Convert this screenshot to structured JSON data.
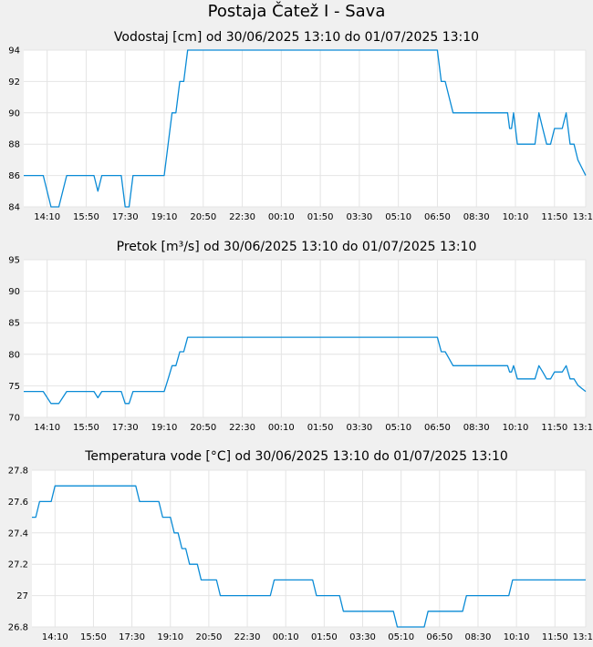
{
  "page": {
    "title": "Postaja Čatež I - Sava"
  },
  "colors": {
    "line": "#0a8bd6",
    "grid": "#e4e4e4",
    "plot_bg": "#ffffff",
    "page_bg": "#f0f0f0"
  },
  "x_ticks": [
    "14:10",
    "15:50",
    "17:30",
    "19:10",
    "20:50",
    "22:30",
    "00:10",
    "01:50",
    "03:30",
    "05:10",
    "06:50",
    "08:30",
    "10:10",
    "11:50",
    "13:10"
  ],
  "chart_data": [
    {
      "type": "line",
      "title": "Vodostaj [cm] od 30/06/2025 13:10 do 01/07/2025 13:10",
      "ylim": [
        84,
        94
      ],
      "yticks": [
        84,
        86,
        88,
        90,
        92,
        94
      ],
      "ytick_labels": [
        "84",
        "86",
        "88",
        "90",
        "92",
        "94"
      ],
      "grid": true,
      "x": [
        "13:10",
        "14:00",
        "14:20",
        "14:40",
        "15:00",
        "16:10",
        "16:20",
        "16:30",
        "17:20",
        "17:30",
        "17:40",
        "17:50",
        "19:10",
        "19:20",
        "19:30",
        "19:40",
        "19:50",
        "20:00",
        "20:10",
        "20:20",
        "06:50",
        "07:00",
        "07:10",
        "07:20",
        "07:30",
        "07:40",
        "07:50",
        "08:40",
        "09:50",
        "09:55",
        "10:00",
        "10:05",
        "10:10",
        "10:15",
        "10:20",
        "10:25",
        "10:30",
        "10:40",
        "11:00",
        "11:10",
        "11:20",
        "11:30",
        "11:40",
        "11:50",
        "12:00",
        "12:10",
        "12:20",
        "12:30",
        "12:40",
        "12:50",
        "13:00",
        "13:10"
      ],
      "values": [
        86,
        86,
        84,
        84,
        86,
        86,
        85,
        86,
        86,
        84,
        84,
        86,
        86,
        88,
        90,
        90,
        92,
        92,
        94,
        94,
        94,
        92,
        92,
        91,
        90,
        90,
        90,
        90,
        90,
        89,
        89,
        90,
        89,
        88,
        88,
        88,
        88,
        88,
        88,
        90,
        89,
        88,
        88,
        89,
        89,
        89,
        90,
        88,
        88,
        87,
        86.5,
        86
      ]
    },
    {
      "type": "line",
      "title": "Pretok [m³/s] od 30/06/2025 13:10 do 01/07/2025 13:10",
      "ylim": [
        70,
        95
      ],
      "yticks": [
        70,
        75,
        80,
        85,
        90,
        95
      ],
      "ytick_labels": [
        "70",
        "75",
        "80",
        "85",
        "90",
        "95"
      ],
      "grid": true,
      "x": [
        "13:10",
        "14:00",
        "14:20",
        "14:40",
        "15:00",
        "16:10",
        "16:20",
        "16:30",
        "17:20",
        "17:30",
        "17:40",
        "17:50",
        "19:10",
        "19:20",
        "19:30",
        "19:40",
        "19:50",
        "20:00",
        "20:10",
        "20:20",
        "06:50",
        "07:00",
        "07:10",
        "07:20",
        "07:30",
        "07:40",
        "07:50",
        "08:40",
        "09:50",
        "09:55",
        "10:00",
        "10:05",
        "10:10",
        "10:15",
        "10:20",
        "10:25",
        "10:30",
        "10:40",
        "11:00",
        "11:10",
        "11:20",
        "11:30",
        "11:40",
        "11:50",
        "12:00",
        "12:10",
        "12:20",
        "12:30",
        "12:40",
        "12:50",
        "13:00",
        "13:10"
      ],
      "values": [
        74.1,
        74.1,
        72.2,
        72.2,
        74.1,
        74.1,
        73.1,
        74.1,
        74.1,
        72.2,
        72.2,
        74.1,
        74.1,
        76.1,
        78.2,
        78.2,
        80.4,
        80.4,
        82.7,
        82.7,
        82.7,
        80.4,
        80.4,
        79.3,
        78.2,
        78.2,
        78.2,
        78.2,
        78.2,
        77.2,
        77.2,
        78.2,
        77.2,
        76.1,
        76.1,
        76.1,
        76.1,
        76.1,
        76.1,
        78.2,
        77.2,
        76.1,
        76.1,
        77.2,
        77.2,
        77.2,
        78.2,
        76.1,
        76.1,
        75.1,
        74.6,
        74.1
      ]
    },
    {
      "type": "line",
      "title": "Temperatura vode [°C] od 30/06/2025 13:10 do 01/07/2025 13:10",
      "ylim": [
        26.8,
        27.8
      ],
      "yticks": [
        26.8,
        27,
        27.2,
        27.4,
        27.6,
        27.8
      ],
      "ytick_labels": [
        "26.8",
        "27",
        "27.2",
        "27.4",
        "27.6",
        "27.8"
      ],
      "grid": true,
      "x": [
        "13:10",
        "13:20",
        "13:30",
        "13:40",
        "14:00",
        "14:10",
        "14:20",
        "17:40",
        "17:50",
        "18:00",
        "18:40",
        "18:50",
        "19:10",
        "19:20",
        "19:30",
        "19:40",
        "19:50",
        "20:00",
        "20:20",
        "20:30",
        "21:10",
        "21:20",
        "23:30",
        "23:40",
        "01:20",
        "01:30",
        "02:30",
        "02:40",
        "04:50",
        "05:00",
        "06:10",
        "06:20",
        "07:50",
        "08:00",
        "09:50",
        "10:00",
        "10:40",
        "10:50",
        "11:30",
        "11:40",
        "11:50",
        "12:10",
        "12:20",
        "13:00",
        "13:10"
      ],
      "values": [
        27.5,
        27.5,
        27.6,
        27.6,
        27.6,
        27.7,
        27.7,
        27.7,
        27.6,
        27.6,
        27.6,
        27.5,
        27.5,
        27.4,
        27.4,
        27.3,
        27.3,
        27.2,
        27.2,
        27.1,
        27.1,
        27,
        27,
        27.1,
        27.1,
        27,
        27,
        26.9,
        26.9,
        26.8,
        26.8,
        26.9,
        26.9,
        27,
        27,
        27.1,
        27.1,
        27.1,
        27.1,
        27.1,
        27.1,
        27.1,
        27.1,
        27.1,
        27.1
      ]
    }
  ]
}
